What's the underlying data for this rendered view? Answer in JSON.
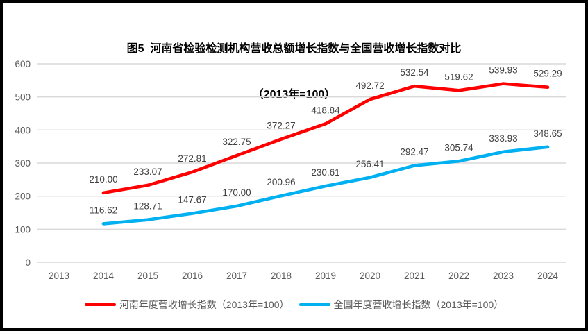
{
  "frame": {
    "border_color": "#000000",
    "background": "#ffffff"
  },
  "title": {
    "line1": "图5  河南省检验检测机构营收总额增长指数与全国营收增长指数对比",
    "line2": "（2013年=100）"
  },
  "chart_data": {
    "type": "line",
    "categories": [
      "2013",
      "2014",
      "2015",
      "2016",
      "2017",
      "2018",
      "2019",
      "2020",
      "2021",
      "2022",
      "2023",
      "2024"
    ],
    "series": [
      {
        "name": "河南年度营收增长指数（2013年=100）",
        "color": "#FF0000",
        "values": [
          null,
          210.0,
          233.07,
          272.81,
          322.75,
          372.27,
          418.84,
          492.72,
          532.54,
          519.62,
          539.93,
          529.29
        ]
      },
      {
        "name": "全国年度营收增长指数（2013年=100）",
        "color": "#00B0F0",
        "values": [
          null,
          116.62,
          128.71,
          147.67,
          170.0,
          200.96,
          230.61,
          256.41,
          292.47,
          305.74,
          333.93,
          348.65
        ]
      }
    ],
    "title": "图5  河南省检验检测机构营收总额增长指数与全国营收增长指数对比（2013年=100）",
    "xlabel": "",
    "ylabel": "",
    "ylim": [
      0,
      600
    ],
    "yticks": [
      0,
      100,
      200,
      300,
      400,
      500,
      600
    ],
    "grid": true,
    "data_labels": true,
    "data_label_decimals": 2,
    "legend_position": "bottom",
    "colors": {
      "gridline": "#D9D9D9",
      "tick_label": "#595959",
      "data_label": "#404040"
    }
  }
}
